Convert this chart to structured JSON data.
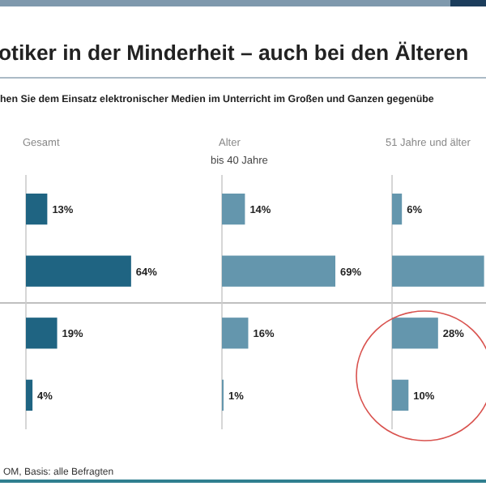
{
  "chart_data": [
    {
      "type": "other",
      "title": "otiker in der Minderheit – auch bei den Älteren",
      "subtitle": "hen Sie dem Einsatz elektronischer Medien im Unterricht im Großen und Ganzen gegenübe",
      "annotations": [
        "OM, Basis: alle Befragten"
      ]
    },
    {
      "type": "bar",
      "orientation": "horizontal",
      "title": "Gesamt",
      "categories": [
        null,
        null,
        null,
        null
      ],
      "values": [
        13,
        64,
        19,
        4
      ],
      "value_labels": [
        "13%",
        "64%",
        "19%",
        "4%"
      ],
      "color": "#1f6482"
    },
    {
      "type": "bar",
      "orientation": "horizontal",
      "title": "Alter",
      "subtitle": "bis 40 Jahre",
      "categories": [
        null,
        null,
        null,
        null
      ],
      "values": [
        14,
        69,
        16,
        1
      ],
      "value_labels": [
        "14%",
        "69%",
        "16%",
        "1%"
      ],
      "color": "#6496ad"
    },
    {
      "type": "bar",
      "orientation": "horizontal",
      "title": "51 Jahre und älter",
      "categories": [
        null,
        null,
        null,
        null
      ],
      "values": [
        6,
        56,
        28,
        10
      ],
      "value_labels": [
        "6%",
        null,
        "28%",
        "10%"
      ],
      "color": "#6496ad"
    }
  ]
}
